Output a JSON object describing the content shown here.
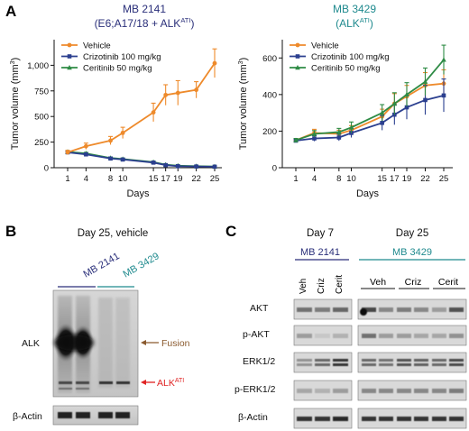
{
  "panels": {
    "A": "A",
    "B": "B",
    "C": "C"
  },
  "panelA": {
    "left": {
      "title_line1": "MB 2141",
      "title_line2": "(E6;A17/18 + ALK",
      "title_sup": "ATI",
      "title_end": ")",
      "title_color": "#2a2f7a"
    },
    "right": {
      "title_line1": "MB 3429",
      "title_line2": "(ALK",
      "title_sup": "ATI",
      "title_end": ")",
      "title_color": "#1f8a8e"
    }
  },
  "chart_data": [
    {
      "type": "line",
      "title": "MB 2141 (E6;A17/18 + ALKATI)",
      "xlabel": "Days",
      "ylabel": "Tumor volume (mm3)",
      "x": [
        1,
        4,
        8,
        10,
        15,
        17,
        19,
        22,
        25
      ],
      "x_tick_labels": [
        "1",
        "4",
        "8",
        "10",
        "15",
        "17",
        "19",
        "22",
        "25"
      ],
      "ylim": [
        0,
        1250
      ],
      "y_ticks": [
        0,
        250,
        500,
        750,
        1000
      ],
      "y_tick_labels": [
        "0",
        "250",
        "500",
        "750",
        "1,000"
      ],
      "legend": "top-left",
      "series": [
        {
          "name": "Vehicle",
          "color": "#ee8a2b",
          "marker": "circle",
          "values": [
            150,
            210,
            265,
            340,
            540,
            710,
            730,
            760,
            1020
          ],
          "errors": [
            20,
            30,
            40,
            55,
            90,
            100,
            120,
            80,
            140
          ]
        },
        {
          "name": "Crizotinib 100 mg/kg",
          "color": "#2b3f8f",
          "marker": "square",
          "values": [
            150,
            130,
            90,
            80,
            50,
            25,
            15,
            12,
            10
          ],
          "errors": [
            10,
            10,
            10,
            10,
            8,
            6,
            5,
            5,
            5
          ]
        },
        {
          "name": "Ceritinib 50 mg/kg",
          "color": "#2e8b45",
          "marker": "triangle",
          "values": [
            155,
            140,
            95,
            85,
            55,
            30,
            20,
            15,
            12
          ],
          "errors": [
            10,
            10,
            10,
            10,
            8,
            6,
            5,
            5,
            5
          ]
        }
      ]
    },
    {
      "type": "line",
      "title": "MB 3429 (ALKATI)",
      "xlabel": "Days",
      "ylabel": "Tumor volume (mm3)",
      "x": [
        1,
        4,
        8,
        10,
        15,
        17,
        19,
        22,
        25
      ],
      "x_tick_labels": [
        "1",
        "4",
        "8",
        "10",
        "15",
        "17",
        "19",
        "22",
        "25"
      ],
      "ylim": [
        0,
        700
      ],
      "y_ticks": [
        0,
        200,
        400,
        600
      ],
      "y_tick_labels": [
        "0",
        "200",
        "400",
        "600"
      ],
      "legend": "top-left",
      "series": [
        {
          "name": "Vehicle",
          "color": "#ee8a2b",
          "marker": "circle",
          "values": [
            150,
            190,
            185,
            205,
            280,
            350,
            390,
            450,
            460
          ],
          "errors": [
            10,
            20,
            20,
            25,
            40,
            55,
            60,
            70,
            75
          ]
        },
        {
          "name": "Crizotinib 100 mg/kg",
          "color": "#2b3f8f",
          "marker": "square",
          "values": [
            148,
            160,
            165,
            190,
            245,
            290,
            330,
            370,
            395
          ],
          "errors": [
            10,
            15,
            18,
            25,
            40,
            55,
            65,
            80,
            90
          ]
        },
        {
          "name": "Ceritinib 50 mg/kg",
          "color": "#2e8b45",
          "marker": "triangle",
          "values": [
            150,
            185,
            195,
            220,
            300,
            350,
            400,
            470,
            590
          ],
          "errors": [
            10,
            18,
            20,
            30,
            45,
            60,
            65,
            75,
            80
          ]
        }
      ]
    }
  ],
  "panelB": {
    "title": "Day 25, vehicle",
    "lane_group1": "MB 2141",
    "lane_group2": "MB 3429",
    "row_alk": "ALK",
    "row_actin": "β-Actin",
    "fusion_label": "Fusion",
    "fusion_color": "#8a5a2e",
    "ati_label": "ALK",
    "ati_sup": "ATI",
    "ati_color": "#e02424"
  },
  "panelC": {
    "day7": "Day 7",
    "day25": "Day 25",
    "group_left": "MB 2141",
    "group_right": "MB 3429",
    "lanes_left": [
      "Veh",
      "Criz",
      "Cerit"
    ],
    "lanes_right": [
      "Veh",
      "Criz",
      "Cerit"
    ],
    "rows": [
      "AKT",
      "p-AKT",
      "ERK1/2",
      "p-ERK1/2",
      "β-Actin"
    ]
  }
}
